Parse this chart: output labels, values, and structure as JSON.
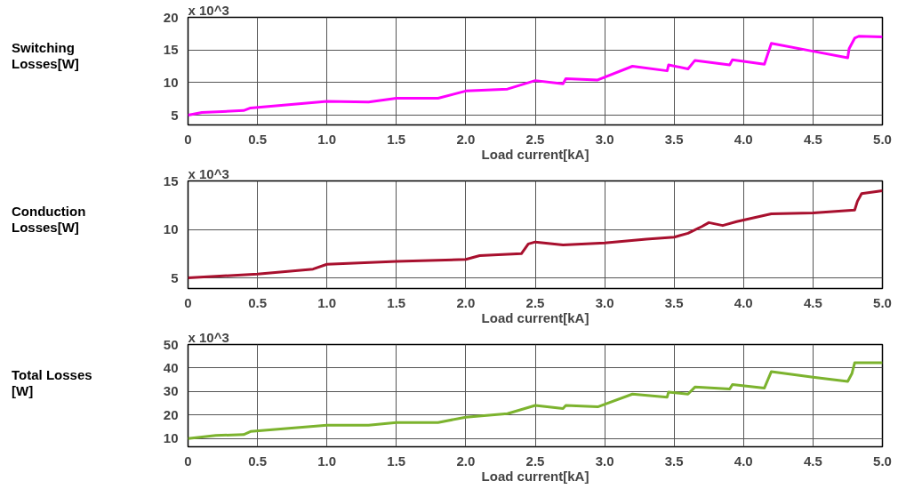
{
  "chart_data": [
    {
      "type": "line",
      "ylabel": "Switching\nLosses[W]",
      "xlabel": "Load current[kA]",
      "annotations": [
        "x 10^3"
      ],
      "xlim": [
        0,
        5
      ],
      "ylim": [
        3.5,
        20
      ],
      "yticks": [
        5,
        10,
        15,
        20
      ],
      "xticks": [
        0,
        0.5,
        {
          "value": 1,
          "label": "1.0"
        },
        1.5,
        {
          "value": 2,
          "label": "2.0"
        },
        2.5,
        {
          "value": 3,
          "label": "3.0"
        },
        3.5,
        {
          "value": 4,
          "label": "4.0"
        },
        4.5,
        {
          "value": 5,
          "label": "5.0"
        }
      ],
      "grid": true,
      "line_style": "solid",
      "series": [
        {
          "color": "#ff00ff",
          "x": [
            0,
            0.1,
            0.4,
            0.45,
            1.0,
            1.3,
            1.5,
            1.8,
            2.0,
            2.3,
            2.5,
            2.7,
            2.72,
            2.95,
            3.2,
            3.45,
            3.46,
            3.6,
            3.65,
            3.9,
            3.92,
            4.15,
            4.2,
            4.5,
            4.75,
            4.76,
            4.8,
            4.83,
            5.0
          ],
          "values": [
            5.0,
            5.4,
            5.7,
            6.1,
            7.1,
            7.0,
            7.6,
            7.6,
            8.7,
            9.0,
            10.3,
            9.8,
            10.6,
            10.4,
            12.5,
            11.8,
            12.7,
            12.1,
            13.4,
            12.7,
            13.5,
            12.8,
            16.0,
            14.8,
            13.8,
            15.2,
            16.8,
            17.1,
            17.0
          ]
        }
      ]
    },
    {
      "type": "line",
      "ylabel": "Conduction\nLosses[W]",
      "xlabel": "Load current[kA]",
      "annotations": [
        "x 10^3"
      ],
      "xlim": [
        0,
        5
      ],
      "ylim": [
        3.9,
        15
      ],
      "yticks": [
        5,
        10,
        15
      ],
      "xticks": [
        0,
        0.5,
        {
          "value": 1,
          "label": "1.0"
        },
        1.5,
        {
          "value": 2,
          "label": "2.0"
        },
        2.5,
        {
          "value": 3,
          "label": "3.0"
        },
        3.5,
        {
          "value": 4,
          "label": "4.0"
        },
        4.5,
        {
          "value": 5,
          "label": "5.0"
        }
      ],
      "grid": true,
      "line_style": "solid",
      "series": [
        {
          "color": "#a8102e",
          "x": [
            0,
            0.5,
            0.9,
            1.0,
            1.5,
            2.0,
            2.1,
            2.4,
            2.45,
            2.5,
            2.7,
            3.0,
            3.3,
            3.5,
            3.6,
            3.7,
            3.75,
            3.85,
            3.95,
            4.2,
            4.5,
            4.8,
            4.82,
            4.85,
            5.0
          ],
          "values": [
            5.0,
            5.4,
            5.9,
            6.4,
            6.7,
            6.9,
            7.3,
            7.5,
            8.5,
            8.7,
            8.4,
            8.6,
            9.0,
            9.2,
            9.6,
            10.3,
            10.7,
            10.4,
            10.8,
            11.6,
            11.7,
            12.0,
            12.9,
            13.7,
            14.0
          ]
        }
      ]
    },
    {
      "type": "line",
      "ylabel": "Total Losses\n[W]",
      "xlabel": "Load current[kA]",
      "annotations": [
        "x 10^3"
      ],
      "xlim": [
        0,
        5
      ],
      "ylim": [
        6.5,
        50
      ],
      "yticks": [
        10,
        20,
        30,
        40,
        50
      ],
      "xticks": [
        0,
        0.5,
        {
          "value": 1,
          "label": "1.0"
        },
        1.5,
        {
          "value": 2,
          "label": "2.0"
        },
        2.5,
        {
          "value": 3,
          "label": "3.0"
        },
        3.5,
        {
          "value": 4,
          "label": "4.0"
        },
        4.5,
        {
          "value": 5,
          "label": "5.0"
        }
      ],
      "grid": true,
      "line_style": "solid",
      "series": [
        {
          "color": "#7cb32e",
          "x": [
            0,
            0.2,
            0.4,
            0.45,
            1.0,
            1.3,
            1.5,
            1.8,
            2.0,
            2.3,
            2.5,
            2.7,
            2.72,
            2.95,
            3.2,
            3.45,
            3.46,
            3.6,
            3.65,
            3.9,
            3.92,
            4.15,
            4.2,
            4.5,
            4.75,
            4.78,
            4.8,
            5.0
          ],
          "values": [
            10.0,
            11.3,
            11.7,
            13.0,
            15.7,
            15.7,
            16.8,
            16.8,
            19.1,
            20.6,
            24.1,
            22.8,
            24.1,
            23.5,
            28.9,
            27.6,
            29.8,
            28.9,
            31.9,
            31.1,
            33.0,
            31.5,
            38.5,
            36.1,
            34.3,
            37.6,
            42.2,
            42.2
          ]
        }
      ]
    }
  ]
}
